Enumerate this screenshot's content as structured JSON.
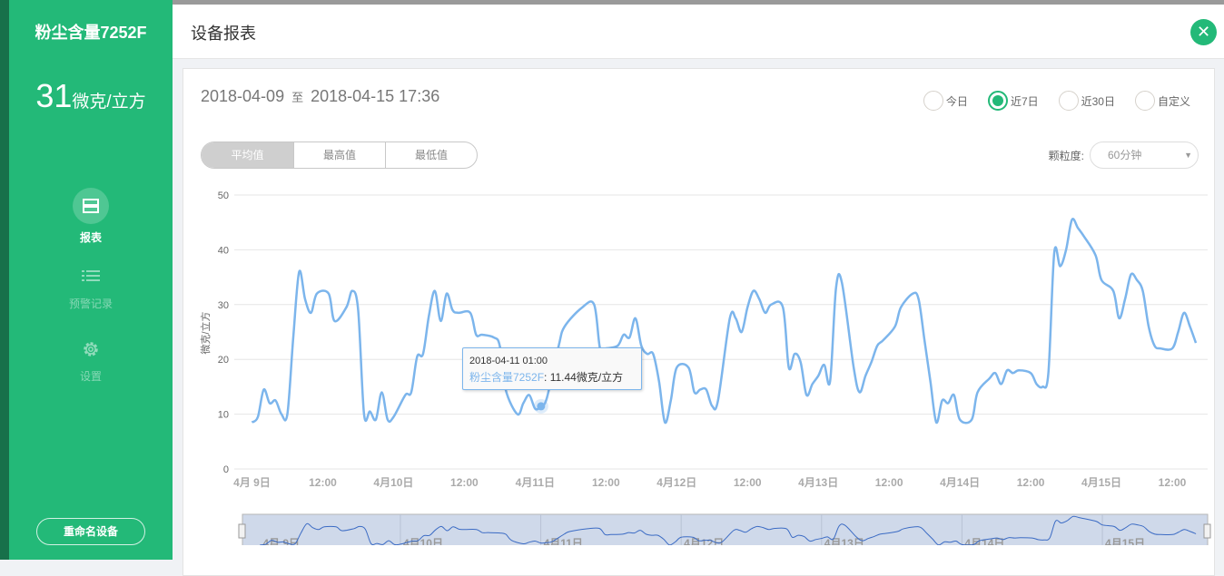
{
  "sidebar": {
    "device_name": "粉尘含量7252F",
    "value": "31",
    "unit": "微克/立方",
    "items": [
      {
        "label": "报表",
        "icon": "report-icon",
        "active": true
      },
      {
        "label": "预警记录",
        "icon": "list-icon"
      },
      {
        "label": "设置",
        "icon": "gear-icon"
      }
    ],
    "rename_label": "重命名设备"
  },
  "header": {
    "title": "设备报表",
    "close_icon": "close-icon"
  },
  "filters": {
    "start": "2018-04-09",
    "to": "至",
    "end": "2018-04-15 17:36",
    "ranges": [
      {
        "label": "今日"
      },
      {
        "label": "近7日",
        "selected": true
      },
      {
        "label": "近30日"
      },
      {
        "label": "自定义"
      }
    ],
    "modes": [
      "平均值",
      "最高值",
      "最低值"
    ],
    "selected_mode": "平均值",
    "granularity_label": "颗粒度:",
    "granularity": "60分钟"
  },
  "colors": {
    "accent": "#23b978",
    "series": "#7cb5ec",
    "navigator": "#3b6bc4"
  },
  "tooltip": {
    "time": "2018-04-11 01:00",
    "series": "粉尘含量7252F",
    "value": "11.44微克/立方"
  },
  "chart_data": {
    "type": "line",
    "ylabel": "微克/立方",
    "ylim": [
      0,
      50
    ],
    "yticks": [
      "0",
      "10",
      "20",
      "30",
      "40",
      "50"
    ],
    "xlim": [
      "2018-04-08 21:00",
      "2018-04-15 18:00"
    ],
    "xticks": [
      [
        "2018-04-09 00:00",
        "4月 9日"
      ],
      [
        "2018-04-09 12:00",
        "12:00"
      ],
      [
        "2018-04-10 00:00",
        "4月10日"
      ],
      [
        "2018-04-10 12:00",
        "12:00"
      ],
      [
        "2018-04-11 00:00",
        "4月11日"
      ],
      [
        "2018-04-11 12:00",
        "12:00"
      ],
      [
        "2018-04-12 00:00",
        "4月12日"
      ],
      [
        "2018-04-12 12:00",
        "12:00"
      ],
      [
        "2018-04-13 00:00",
        "4月13日"
      ],
      [
        "2018-04-13 12:00",
        "12:00"
      ],
      [
        "2018-04-14 00:00",
        "4月14日"
      ],
      [
        "2018-04-14 12:00",
        "12:00"
      ],
      [
        "2018-04-15 00:00",
        "4月15日"
      ],
      [
        "2018-04-15 12:00",
        "12:00"
      ]
    ],
    "grid": true,
    "navigator_labels": [
      "4月 9日",
      "4月10日",
      "4月11日",
      "4月12日",
      "4月13日",
      "4月14日",
      "4月15日"
    ],
    "series": [
      {
        "name": "粉尘含量7252F",
        "points": [
          [
            "2018-04-09 00:00",
            8.5
          ],
          [
            "2018-04-09 01:00",
            9.5
          ],
          [
            "2018-04-09 02:00",
            14.5
          ],
          [
            "2018-04-09 03:00",
            12
          ],
          [
            "2018-04-09 04:00",
            12.5
          ],
          [
            "2018-04-09 05:00",
            10
          ],
          [
            "2018-04-09 06:00",
            10
          ],
          [
            "2018-04-09 07:00",
            24
          ],
          [
            "2018-04-09 08:00",
            36
          ],
          [
            "2018-04-09 09:00",
            31
          ],
          [
            "2018-04-09 10:00",
            28.5
          ],
          [
            "2018-04-09 11:00",
            32
          ],
          [
            "2018-04-09 13:00",
            32
          ],
          [
            "2018-04-09 14:00",
            27
          ],
          [
            "2018-04-09 16:00",
            29.5
          ],
          [
            "2018-04-09 17:00",
            32.5
          ],
          [
            "2018-04-09 18:00",
            29
          ],
          [
            "2018-04-09 19:00",
            10
          ],
          [
            "2018-04-09 20:00",
            10.5
          ],
          [
            "2018-04-09 21:00",
            9
          ],
          [
            "2018-04-09 22:00",
            14
          ],
          [
            "2018-04-09 23:00",
            9
          ],
          [
            "2018-04-10 00:00",
            9.5
          ],
          [
            "2018-04-10 02:00",
            13.5
          ],
          [
            "2018-04-10 03:00",
            14
          ],
          [
            "2018-04-10 04:00",
            20.5
          ],
          [
            "2018-04-10 05:00",
            21
          ],
          [
            "2018-04-10 06:00",
            28
          ],
          [
            "2018-04-10 07:00",
            32.5
          ],
          [
            "2018-04-10 08:00",
            27
          ],
          [
            "2018-04-10 09:00",
            32
          ],
          [
            "2018-04-10 10:00",
            29
          ],
          [
            "2018-04-10 11:00",
            28.5
          ],
          [
            "2018-04-10 13:00",
            28.5
          ],
          [
            "2018-04-10 14:00",
            24.5
          ],
          [
            "2018-04-10 15:00",
            24.5
          ],
          [
            "2018-04-10 17:00",
            24
          ],
          [
            "2018-04-10 18:00",
            22.5
          ],
          [
            "2018-04-10 19:00",
            14.5
          ],
          [
            "2018-04-10 21:00",
            10
          ],
          [
            "2018-04-10 22:00",
            12
          ],
          [
            "2018-04-10 23:00",
            13.5
          ],
          [
            "2018-04-11 00:00",
            11
          ],
          [
            "2018-04-11 01:00",
            11.44
          ],
          [
            "2018-04-11 02:00",
            13
          ],
          [
            "2018-04-11 04:00",
            22.5
          ],
          [
            "2018-04-11 05:00",
            26
          ],
          [
            "2018-04-11 08:00",
            29.5
          ],
          [
            "2018-04-11 10:00",
            30
          ],
          [
            "2018-04-11 11:00",
            22
          ],
          [
            "2018-04-11 12:00",
            22
          ],
          [
            "2018-04-11 14:00",
            22.5
          ],
          [
            "2018-04-11 15:00",
            24.5
          ],
          [
            "2018-04-11 16:00",
            24
          ],
          [
            "2018-04-11 17:00",
            27.5
          ],
          [
            "2018-04-11 18:00",
            22.5
          ],
          [
            "2018-04-11 19:00",
            21
          ],
          [
            "2018-04-11 20:00",
            21
          ],
          [
            "2018-04-11 21:00",
            16
          ],
          [
            "2018-04-11 22:00",
            8.5
          ],
          [
            "2018-04-11 23:00",
            12.5
          ],
          [
            "2018-04-12 00:00",
            18.5
          ],
          [
            "2018-04-12 02:00",
            18.5
          ],
          [
            "2018-04-12 03:00",
            14
          ],
          [
            "2018-04-12 04:00",
            14.5
          ],
          [
            "2018-04-12 05:00",
            14.5
          ],
          [
            "2018-04-12 06:00",
            11.5
          ],
          [
            "2018-04-12 07:00",
            12.5
          ],
          [
            "2018-04-12 09:00",
            27.5
          ],
          [
            "2018-04-12 10:00",
            27.5
          ],
          [
            "2018-04-12 11:00",
            25
          ],
          [
            "2018-04-12 12:00",
            29.5
          ],
          [
            "2018-04-12 13:00",
            32.5
          ],
          [
            "2018-04-12 14:00",
            31
          ],
          [
            "2018-04-12 15:00",
            28.5
          ],
          [
            "2018-04-12 16:00",
            30
          ],
          [
            "2018-04-12 18:00",
            29.5
          ],
          [
            "2018-04-12 19:00",
            18.5
          ],
          [
            "2018-04-12 20:00",
            21
          ],
          [
            "2018-04-12 21:00",
            19.5
          ],
          [
            "2018-04-12 22:00",
            13.5
          ],
          [
            "2018-04-12 23:00",
            15.5
          ],
          [
            "2018-04-13 00:00",
            17
          ],
          [
            "2018-04-13 01:00",
            19
          ],
          [
            "2018-04-13 02:00",
            16
          ],
          [
            "2018-04-13 03:00",
            33
          ],
          [
            "2018-04-13 04:00",
            34
          ],
          [
            "2018-04-13 06:00",
            18.5
          ],
          [
            "2018-04-13 07:00",
            14
          ],
          [
            "2018-04-13 08:00",
            17
          ],
          [
            "2018-04-13 09:00",
            19.5
          ],
          [
            "2018-04-13 10:00",
            22.5
          ],
          [
            "2018-04-13 11:00",
            23.5
          ],
          [
            "2018-04-13 13:00",
            26
          ],
          [
            "2018-04-13 14:00",
            29.5
          ],
          [
            "2018-04-13 16:00",
            32
          ],
          [
            "2018-04-13 17:00",
            31
          ],
          [
            "2018-04-13 18:00",
            23.5
          ],
          [
            "2018-04-13 19:00",
            16
          ],
          [
            "2018-04-13 20:00",
            8.5
          ],
          [
            "2018-04-13 21:00",
            12.5
          ],
          [
            "2018-04-13 22:00",
            12
          ],
          [
            "2018-04-13 23:00",
            13.5
          ],
          [
            "2018-04-14 00:00",
            9
          ],
          [
            "2018-04-14 02:00",
            9
          ],
          [
            "2018-04-14 03:00",
            14
          ],
          [
            "2018-04-14 05:00",
            16.5
          ],
          [
            "2018-04-14 06:00",
            17.5
          ],
          [
            "2018-04-14 07:00",
            15.5
          ],
          [
            "2018-04-14 08:00",
            18
          ],
          [
            "2018-04-14 09:00",
            17.5
          ],
          [
            "2018-04-14 10:00",
            18
          ],
          [
            "2018-04-14 12:00",
            17.5
          ],
          [
            "2018-04-14 13:00",
            15.5
          ],
          [
            "2018-04-14 14:00",
            15
          ],
          [
            "2018-04-14 15:00",
            17.5
          ],
          [
            "2018-04-14 16:00",
            39.5
          ],
          [
            "2018-04-14 17:00",
            37
          ],
          [
            "2018-04-14 18:00",
            40
          ],
          [
            "2018-04-14 19:00",
            45.5
          ],
          [
            "2018-04-14 20:00",
            44
          ],
          [
            "2018-04-14 21:00",
            42.5
          ],
          [
            "2018-04-14 23:00",
            39
          ],
          [
            "2018-04-15 00:00",
            34.5
          ],
          [
            "2018-04-15 02:00",
            32.5
          ],
          [
            "2018-04-15 03:00",
            27.5
          ],
          [
            "2018-04-15 04:00",
            31
          ],
          [
            "2018-04-15 05:00",
            35.5
          ],
          [
            "2018-04-15 06:00",
            34.5
          ],
          [
            "2018-04-15 07:00",
            32.5
          ],
          [
            "2018-04-15 08:00",
            26
          ],
          [
            "2018-04-15 09:00",
            22.5
          ],
          [
            "2018-04-15 10:00",
            22
          ],
          [
            "2018-04-15 12:00",
            22
          ],
          [
            "2018-04-15 13:00",
            25
          ],
          [
            "2018-04-15 14:00",
            28.5
          ],
          [
            "2018-04-15 15:00",
            26
          ],
          [
            "2018-04-15 16:00",
            23
          ]
        ]
      }
    ]
  }
}
